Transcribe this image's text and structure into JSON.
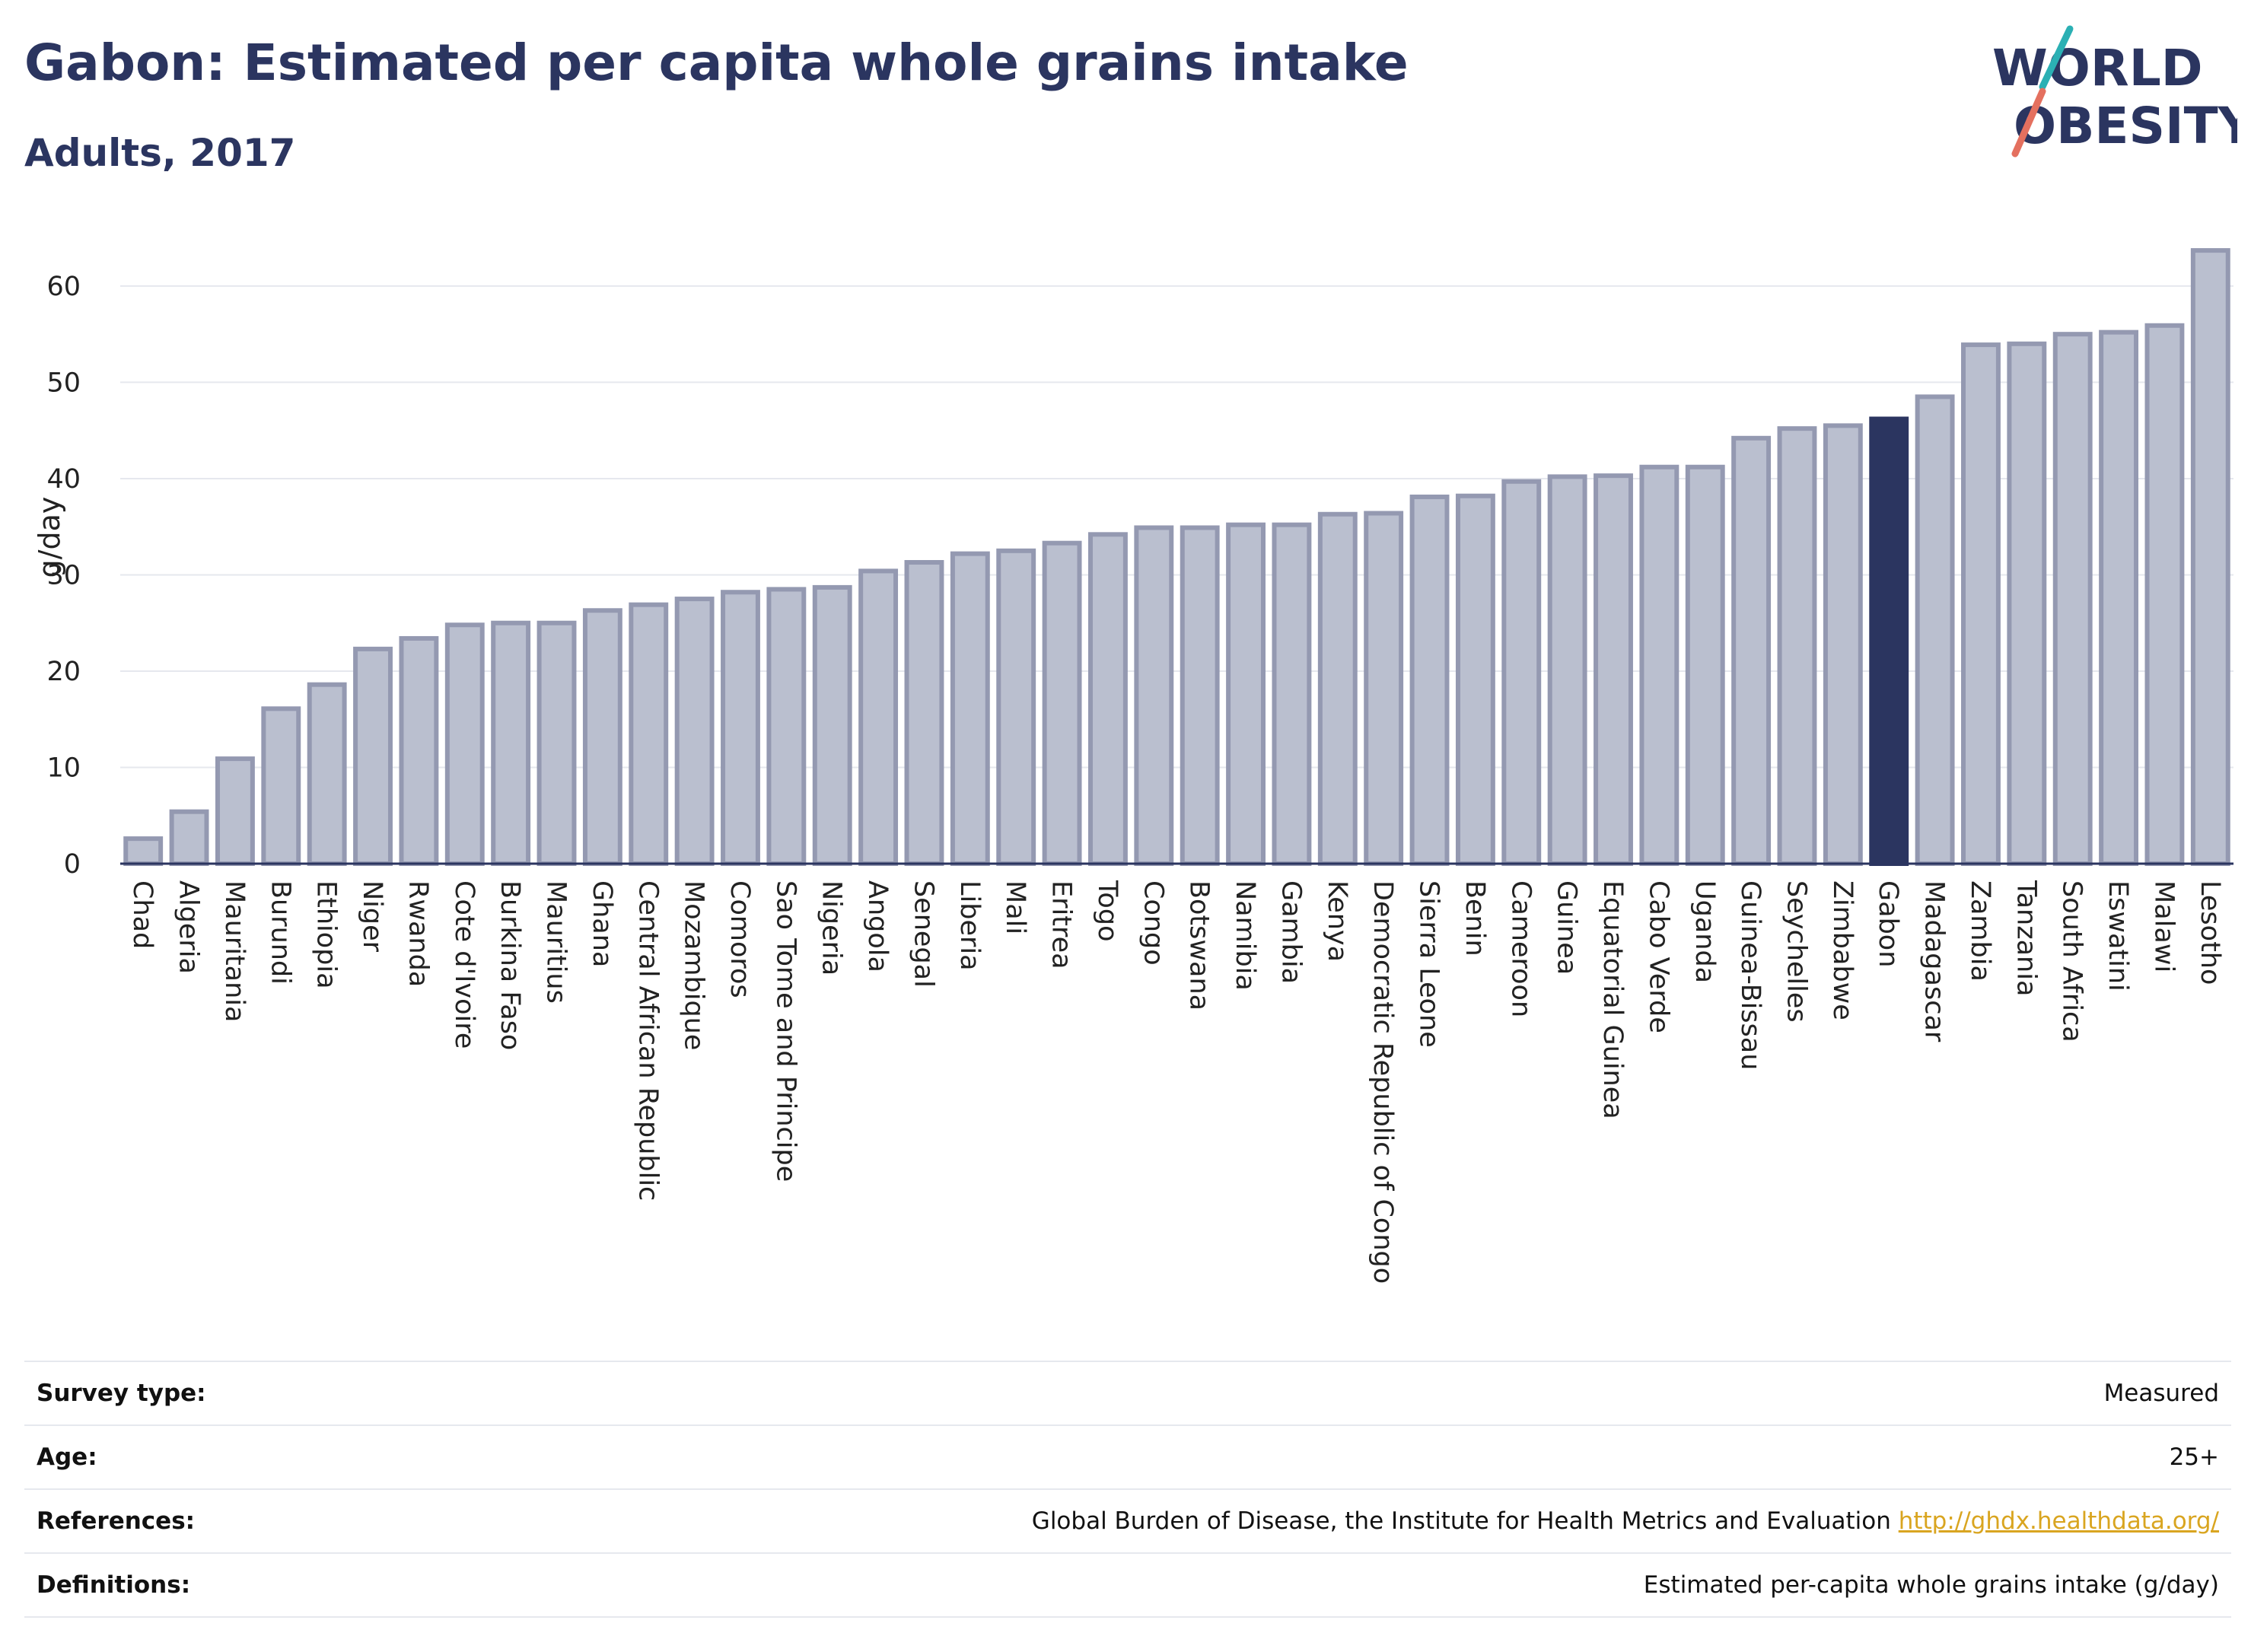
{
  "header": {
    "title": "Gabon: Estimated per capita whole grains intake",
    "subtitle": "Adults, 2017"
  },
  "logo": {
    "line1": "WORLD",
    "line2": "OBESITY",
    "colors": {
      "text": "#2b3560",
      "teal": "#2bb0b4",
      "coral": "#e4705f"
    }
  },
  "colors": {
    "bar": "#babfcf",
    "bar_border": "#9499b1",
    "highlight": "#2b3560",
    "grid": "#e6e8ee",
    "axis": "#2b3560"
  },
  "chart_data": {
    "type": "bar",
    "title": "Gabon: Estimated per capita whole grains intake",
    "subtitle": "Adults, 2017",
    "xlabel": "",
    "ylabel": "g/day",
    "ylim": [
      0,
      66
    ],
    "yticks": [
      0,
      10,
      20,
      30,
      40,
      50,
      60
    ],
    "grid": true,
    "highlight": "Gabon",
    "categories": [
      "Chad",
      "Algeria",
      "Mauritania",
      "Burundi",
      "Ethiopia",
      "Niger",
      "Rwanda",
      "Cote d'Ivoire",
      "Burkina Faso",
      "Mauritius",
      "Ghana",
      "Central African Republic",
      "Mozambique",
      "Comoros",
      "Sao Tome and Principe",
      "Nigeria",
      "Angola",
      "Senegal",
      "Liberia",
      "Mali",
      "Eritrea",
      "Togo",
      "Congo",
      "Botswana",
      "Namibia",
      "Gambia",
      "Kenya",
      "Democratic Republic of Congo",
      "Sierra Leone",
      "Benin",
      "Cameroon",
      "Guinea",
      "Equatorial Guinea",
      "Cabo Verde",
      "Uganda",
      "Guinea-Bissau",
      "Seychelles",
      "Zimbabwe",
      "Gabon",
      "Madagascar",
      "Zambia",
      "Tanzania",
      "South Africa",
      "Eswatini",
      "Malawi",
      "Lesotho"
    ],
    "values": [
      2.6,
      5.4,
      10.9,
      16.1,
      18.6,
      22.3,
      23.4,
      24.8,
      25.0,
      25.0,
      26.3,
      26.9,
      27.5,
      28.2,
      28.5,
      28.7,
      30.4,
      31.3,
      32.2,
      32.5,
      33.3,
      34.2,
      34.9,
      34.9,
      35.2,
      35.2,
      36.3,
      36.4,
      38.1,
      38.2,
      39.7,
      40.2,
      40.3,
      41.2,
      41.2,
      44.2,
      45.2,
      45.5,
      46.2,
      48.5,
      53.9,
      54.0,
      55.0,
      55.2,
      55.9,
      63.7
    ]
  },
  "info": {
    "survey_type": {
      "label": "Survey type:",
      "value": "Measured"
    },
    "age": {
      "label": "Age:",
      "value": "25+"
    },
    "references": {
      "label": "References:",
      "value": "Global Burden of Disease, the Institute for Health Metrics and Evaluation",
      "link": "http://ghdx.healthdata.org/"
    },
    "definitions": {
      "label": "Definitions:",
      "value": "Estimated per-capita whole grains intake (g/day)"
    }
  }
}
